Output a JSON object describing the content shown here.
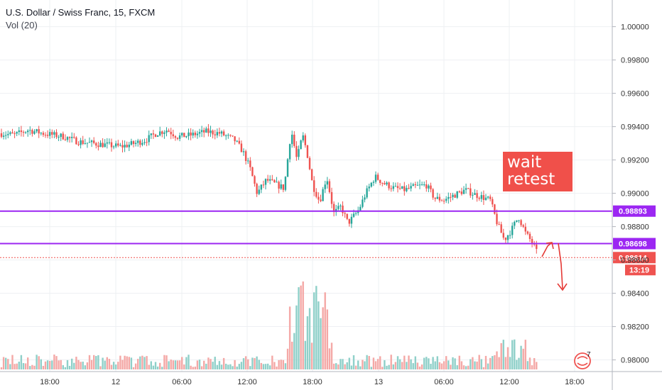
{
  "header": {
    "title": "U.S. Dollar / Swiss Franc, 15, FXCM",
    "indicator": "Vol (20)"
  },
  "annotation": {
    "line1": "wait",
    "line2": "retest"
  },
  "price_scale": {
    "ticks": [
      "1.00000",
      "0.99800",
      "0.99600",
      "0.99400",
      "0.99200",
      "0.99000",
      "0.98800",
      "0.98600",
      "0.98400",
      "0.98200",
      "0.98000"
    ],
    "tick_values": [
      1.0,
      0.998,
      0.996,
      0.994,
      0.992,
      0.99,
      0.988,
      0.986,
      0.984,
      0.982,
      0.98
    ],
    "range": [
      0.9793,
      1.0016
    ]
  },
  "time_scale": {
    "ticks": [
      "18:00",
      "12",
      "06:00",
      "12:00",
      "18:00",
      "13",
      "06:00",
      "12:00",
      "18:00"
    ]
  },
  "levels": [
    {
      "label": "0.98893",
      "value": 0.98893,
      "color": "#9c27f2"
    },
    {
      "label": "0.98698",
      "value": 0.98698,
      "color": "#9c27f2"
    }
  ],
  "last_price": {
    "label": "0.98614",
    "value": 0.98614,
    "countdown": "13:19",
    "color": "#ef5350"
  },
  "colors": {
    "up": "#26a69a",
    "down": "#ef5350",
    "level": "#9c27f2",
    "arrow": "#e53935"
  },
  "badge": {
    "count": "7",
    "icon": "tradingview-badge-icon"
  },
  "chart_data": {
    "type": "candlestick",
    "title": "U.S. Dollar / Swiss Franc, 15, FXCM",
    "price_path": [
      [
        0,
        0.9936
      ],
      [
        20,
        0.9935
      ],
      [
        40,
        0.9938
      ],
      [
        60,
        0.9936
      ],
      [
        90,
        0.9934
      ],
      [
        110,
        0.9931
      ],
      [
        130,
        0.993
      ],
      [
        150,
        0.9929
      ],
      [
        170,
        0.9928
      ],
      [
        190,
        0.993
      ],
      [
        205,
        0.9932
      ],
      [
        220,
        0.9936
      ],
      [
        235,
        0.9938
      ],
      [
        250,
        0.9934
      ],
      [
        270,
        0.9935
      ],
      [
        290,
        0.9937
      ],
      [
        310,
        0.9936
      ],
      [
        330,
        0.9932
      ],
      [
        342,
        0.9925
      ],
      [
        352,
        0.9915
      ],
      [
        362,
        0.99
      ],
      [
        375,
        0.9908
      ],
      [
        390,
        0.9905
      ],
      [
        400,
        0.9903
      ],
      [
        410,
        0.9938
      ],
      [
        418,
        0.992
      ],
      [
        426,
        0.9935
      ],
      [
        432,
        0.9925
      ],
      [
        440,
        0.9905
      ],
      [
        450,
        0.9895
      ],
      [
        460,
        0.991
      ],
      [
        470,
        0.9888
      ],
      [
        480,
        0.9892
      ],
      [
        490,
        0.9882
      ],
      [
        505,
        0.989
      ],
      [
        515,
        0.99
      ],
      [
        528,
        0.991
      ],
      [
        540,
        0.9906
      ],
      [
        555,
        0.9903
      ],
      [
        570,
        0.9902
      ],
      [
        585,
        0.9904
      ],
      [
        600,
        0.9905
      ],
      [
        612,
        0.9897
      ],
      [
        625,
        0.9896
      ],
      [
        640,
        0.9899
      ],
      [
        655,
        0.9902
      ],
      [
        670,
        0.9899
      ],
      [
        690,
        0.9896
      ],
      [
        700,
        0.9882
      ],
      [
        710,
        0.9872
      ],
      [
        720,
        0.9878
      ],
      [
        730,
        0.9886
      ],
      [
        740,
        0.9876
      ],
      [
        750,
        0.987
      ],
      [
        757,
        0.9863
      ]
    ],
    "volume": {
      "baseline": "low",
      "spikes": [
        {
          "x_from": 405,
          "x_to": 470,
          "level": "high"
        },
        {
          "x_from": 695,
          "x_to": 740,
          "level": "medium"
        }
      ]
    },
    "horizontal_levels": [
      0.98893,
      0.98698
    ],
    "last": 0.98614,
    "x_ticks": [
      "18:00",
      "12",
      "06:00",
      "12:00",
      "18:00",
      "13",
      "06:00",
      "12:00",
      "18:00"
    ],
    "y_ticks": [
      "1.00000",
      "0.99800",
      "0.99600",
      "0.99400",
      "0.99200",
      "0.99000",
      "0.98800",
      "0.98600",
      "0.98400",
      "0.98200",
      "0.98000"
    ],
    "ylim": [
      0.9793,
      1.0016
    ],
    "grid": true
  }
}
